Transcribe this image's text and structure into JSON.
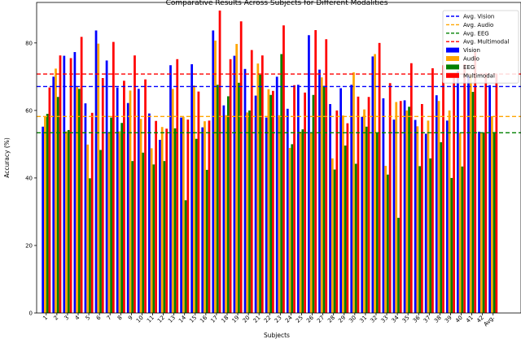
{
  "chart_data": {
    "type": "bar",
    "title": "Comparative Results Across Subjects for Different Modalities",
    "xlabel": "Subjects",
    "ylabel": "Accuracy (%)",
    "ylim": [
      0,
      92
    ],
    "yticks": [
      0,
      20,
      40,
      60,
      80
    ],
    "grid": false,
    "legend_position": "top-right",
    "categories": [
      "1",
      "2",
      "3",
      "4",
      "5",
      "6",
      "7",
      "8",
      "9",
      "10",
      "11",
      "12",
      "13",
      "14",
      "15",
      "16",
      "17",
      "18",
      "19",
      "20",
      "21",
      "22",
      "23",
      "24",
      "25",
      "26",
      "27",
      "28",
      "29",
      "30",
      "31",
      "32",
      "33",
      "34",
      "35",
      "36",
      "37",
      "38",
      "39",
      "40",
      "41",
      "42",
      "Avg."
    ],
    "series": [
      {
        "name": "Vision",
        "color": "#0000ff",
        "values": [
          55.2,
          70.0,
          76.2,
          77.3,
          62.1,
          83.7,
          74.8,
          66.8,
          62.2,
          66.4,
          59.1,
          51.3,
          73.4,
          57.9,
          73.7,
          55.0,
          83.7,
          61.5,
          76.2,
          72.3,
          64.4,
          57.9,
          70.0,
          60.5,
          67.6,
          82.3,
          72.1,
          61.9,
          66.6,
          67.6,
          58.1,
          76.0,
          63.6,
          57.3,
          63.0,
          57.2,
          53.1,
          64.5,
          57.0,
          71.7,
          70.3,
          53.7,
          67.5
        ]
      },
      {
        "name": "Audio",
        "color": "#ffa500",
        "values": [
          58.1,
          72.4,
          53.8,
          67.2,
          49.9,
          79.8,
          53.6,
          53.8,
          65.9,
          57.5,
          48.8,
          55.1,
          66.4,
          58.1,
          67.4,
          56.8,
          80.7,
          58.6,
          79.7,
          59.4,
          73.9,
          66.3,
          58.6,
          48.9,
          53.7,
          53.5,
          69.8,
          45.8,
          58.5,
          71.3,
          60.3,
          76.7,
          43.6,
          62.5,
          60.0,
          55.3,
          57.0,
          62.8,
          60.0,
          53.4,
          70.6,
          53.3,
          58.3
        ]
      },
      {
        "name": "EEG",
        "color": "#008000",
        "values": [
          59.0,
          64.0,
          54.2,
          66.4,
          39.9,
          48.3,
          57.9,
          56.3,
          45.0,
          47.5,
          44.0,
          45.0,
          54.7,
          33.4,
          51.6,
          42.4,
          67.6,
          64.2,
          68.2,
          60.0,
          70.6,
          64.6,
          76.7,
          50.0,
          54.4,
          64.6,
          67.3,
          42.5,
          49.6,
          44.2,
          55.2,
          53.4,
          41.0,
          28.2,
          61.1,
          43.5,
          45.8,
          50.6,
          40.0,
          43.4,
          65.5,
          53.5,
          53.6
        ]
      },
      {
        "name": "Multimodal",
        "color": "#ff0000",
        "values": [
          66.8,
          76.3,
          75.5,
          81.8,
          59.3,
          69.6,
          80.3,
          68.8,
          76.3,
          69.2,
          56.9,
          54.6,
          75.2,
          57.3,
          65.6,
          57.0,
          89.6,
          75.2,
          86.4,
          77.9,
          76.3,
          65.8,
          85.2,
          67.5,
          65.3,
          83.8,
          81.1,
          60.0,
          56.2,
          64.1,
          64.0,
          80.0,
          68.1,
          62.8,
          74.0,
          61.9,
          72.5,
          73.4,
          69.8,
          73.7,
          77.3,
          71.1,
          70.9
        ]
      }
    ],
    "reference_lines": [
      {
        "name": "Avg. Vision",
        "color": "#0000ff",
        "value": 67.1
      },
      {
        "name": "Avg. Audio",
        "color": "#ffa500",
        "value": 58.2
      },
      {
        "name": "Avg. EEG",
        "color": "#008000",
        "value": 53.4
      },
      {
        "name": "Avg. Multimodal",
        "color": "#ff0000",
        "value": 70.8
      }
    ]
  }
}
